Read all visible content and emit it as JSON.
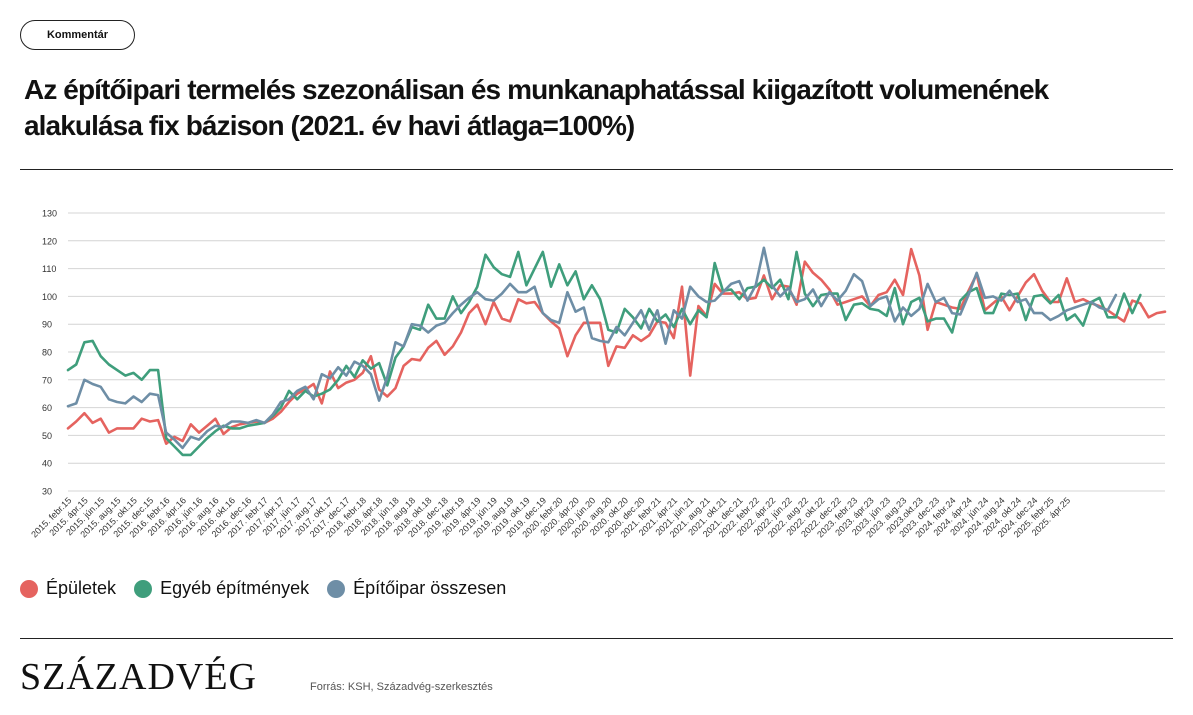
{
  "button": {
    "label": "Kommentár"
  },
  "title": "Az építőipari termelés szezonálisan és munkanaphatással kiigazított volumenének alakulása fix bázison (2021. év havi átlaga=100%)",
  "legend": [
    {
      "label": "Épületek",
      "color": "#e5635f"
    },
    {
      "label": "Egyéb építmények",
      "color": "#3f9e7c"
    },
    {
      "label": "Építőipar összesen",
      "color": "#6e8ea6"
    }
  ],
  "logo": "Századvég",
  "source": "Forrás: KSH, Századvég-szerkesztés",
  "chart_data": {
    "type": "line",
    "ylim": [
      30,
      130
    ],
    "yticks": [
      30,
      40,
      50,
      60,
      70,
      80,
      90,
      100,
      110,
      120,
      130
    ],
    "grid": true,
    "legend_position": "bottom-left",
    "x_tick_labels": [
      "2015. febr.15",
      "2015. ápr.15",
      "2015. jún.15",
      "2015. aug.15",
      "2015. okt.15",
      "2015. dec.15",
      "2016. febr.16",
      "2016. ápr.16",
      "2016. jún.16",
      "2016. aug.16",
      "2016. okt.16",
      "2016. dec.16",
      "2017. febr.17",
      "2017. ápr.17",
      "2017. jún.17",
      "2017. aug.17",
      "2017. okt.17",
      "2017. dec.17",
      "2018. febr.18",
      "2018. ápr.18",
      "2018. jún.18",
      "2018. aug.18",
      "2018. okt.18",
      "2018. dec.18",
      "2019. febr.19",
      "2019. ápr.19",
      "2019. jún.19",
      "2019. aug.19",
      "2019. okt.19",
      "2019. dec.19",
      "2020. febr.20",
      "2020. ápr.20",
      "2020. jún.20",
      "2020. aug.20",
      "2020. okt.20",
      "2020. dec.20",
      "2021. febr.21",
      "2021. ápr.21",
      "2021. jún.21",
      "2021. aug.21",
      "2021. okt.21",
      "2021. dec.21",
      "2022. febr.22",
      "2022. ápr.22",
      "2022. jún.22",
      "2022. aug.22",
      "2022. okt.22",
      "2022. dec.22",
      "2023. febr.23",
      "2023. ápr.23",
      "2023. jún.23",
      "2023. aug.23",
      "2023.okt.23",
      "2023. dec.23",
      "2024. febr.24",
      "2024. ápr.24",
      "2024. jún.24",
      "2024. aug.24",
      "2024. okt.24",
      "2024. dec.24",
      "2025. febr.25",
      "2025. ápr.25"
    ],
    "series": [
      {
        "name": "Épületek",
        "color": "#e5635f",
        "values": [
          52.5,
          55,
          58,
          54.5,
          56,
          51,
          52.5,
          52.5,
          52.5,
          56,
          55,
          55.5,
          47,
          49.5,
          48,
          54,
          51,
          53.5,
          56,
          50.5,
          53,
          54,
          54.5,
          55,
          54.5,
          56,
          58.5,
          62,
          65,
          66.5,
          68.5,
          61.5,
          73,
          67,
          69,
          70,
          72.5,
          78.5,
          66.5,
          64,
          67,
          75,
          77.5,
          77,
          81.5,
          84,
          79,
          82,
          87,
          94,
          97,
          90,
          98,
          92,
          91,
          99,
          97.5,
          98,
          94,
          91,
          88.5,
          78.5,
          86,
          90.5,
          90.5,
          90.5,
          75,
          82,
          81.5,
          86,
          84,
          86,
          91,
          90.5,
          85,
          103.5,
          71.5,
          96.5,
          93,
          104.5,
          101,
          101,
          101.5,
          99,
          99.5,
          107.5,
          99,
          104,
          103.5,
          97,
          112.5,
          108.5,
          106,
          102.5,
          97,
          98,
          99,
          100,
          96.5,
          100.5,
          101.5,
          106,
          100.5,
          117,
          107.5,
          88,
          98,
          97,
          96,
          95.5,
          102,
          108,
          95,
          97.5,
          100,
          95,
          100,
          105,
          108,
          102,
          98,
          98,
          106.5,
          98,
          99,
          97.5,
          96.5,
          95,
          93,
          91,
          98.5,
          97.5,
          92.5,
          94,
          94.5
        ]
      },
      {
        "name": "Egyéb építmények",
        "color": "#3f9e7c",
        "values": [
          73.5,
          75.5,
          83.5,
          84,
          78.5,
          75.5,
          73.5,
          71.5,
          72.5,
          70,
          73.5,
          73.5,
          49,
          46,
          43,
          43,
          46,
          49,
          51.5,
          53.5,
          52.5,
          52.5,
          53.5,
          54,
          54.5,
          57,
          60,
          66,
          63,
          66,
          64,
          65,
          66.5,
          70,
          75,
          71,
          77,
          74,
          76,
          68,
          78,
          82,
          89,
          88,
          97,
          92,
          92,
          100,
          94,
          98,
          103.5,
          115,
          110.5,
          108,
          107,
          116,
          104,
          110,
          116,
          103.5,
          111.5,
          104,
          109,
          99,
          104,
          99,
          88,
          87,
          95.5,
          92.5,
          88.5,
          95.5,
          91,
          93.5,
          89,
          95.5,
          90,
          95,
          92.5,
          112,
          102,
          102.5,
          99,
          103,
          103.5,
          106,
          103,
          106,
          99,
          116,
          101,
          96.5,
          100.5,
          101,
          101,
          91.5,
          97,
          97.5,
          95.5,
          95,
          93,
          103,
          90,
          98,
          99.5,
          91,
          92,
          92,
          87,
          98.5,
          101.5,
          103,
          94,
          94,
          101,
          100.5,
          101,
          91.5,
          100,
          100.5,
          97.5,
          100.5,
          91.5,
          93.5,
          89.5,
          98,
          99.5,
          92.5,
          92.5,
          101,
          94,
          100.5
        ]
      },
      {
        "name": "Építőipar összesen",
        "color": "#6e8ea6",
        "values": [
          60.5,
          61.5,
          70,
          68.5,
          67.5,
          63,
          62,
          61.5,
          64,
          62,
          65,
          64.5,
          51,
          48.5,
          45.5,
          49.5,
          48.5,
          51.5,
          53.5,
          53,
          55,
          55,
          54.5,
          55.5,
          54.5,
          57.5,
          62,
          63,
          66,
          67.5,
          63,
          72,
          70.5,
          74.5,
          71.5,
          76.5,
          75,
          72,
          62.5,
          71,
          83.5,
          82,
          90,
          89.5,
          87,
          89.5,
          90.5,
          94,
          97,
          99.5,
          101.5,
          99,
          98.5,
          101,
          104.5,
          101.5,
          101.5,
          103.5,
          94,
          91.5,
          90.5,
          101.5,
          94.5,
          96,
          85,
          84,
          83.5,
          89,
          86,
          90.5,
          95,
          88,
          95,
          83,
          95,
          92,
          103.5,
          100,
          98,
          98.5,
          101.5,
          104.5,
          105.5,
          98.5,
          104,
          117.5,
          104,
          100,
          103,
          98,
          99,
          102.5,
          96.5,
          101.5,
          98.5,
          102,
          108,
          105.5,
          96.5,
          99,
          100,
          91,
          96,
          93,
          95.5,
          104.5,
          98,
          99.5,
          94,
          93.5,
          100.5,
          108.5,
          99.5,
          100,
          98.5,
          102,
          98,
          99,
          94,
          94,
          91.5,
          93,
          95,
          96,
          97,
          98,
          96,
          95,
          100.5
        ]
      }
    ]
  }
}
